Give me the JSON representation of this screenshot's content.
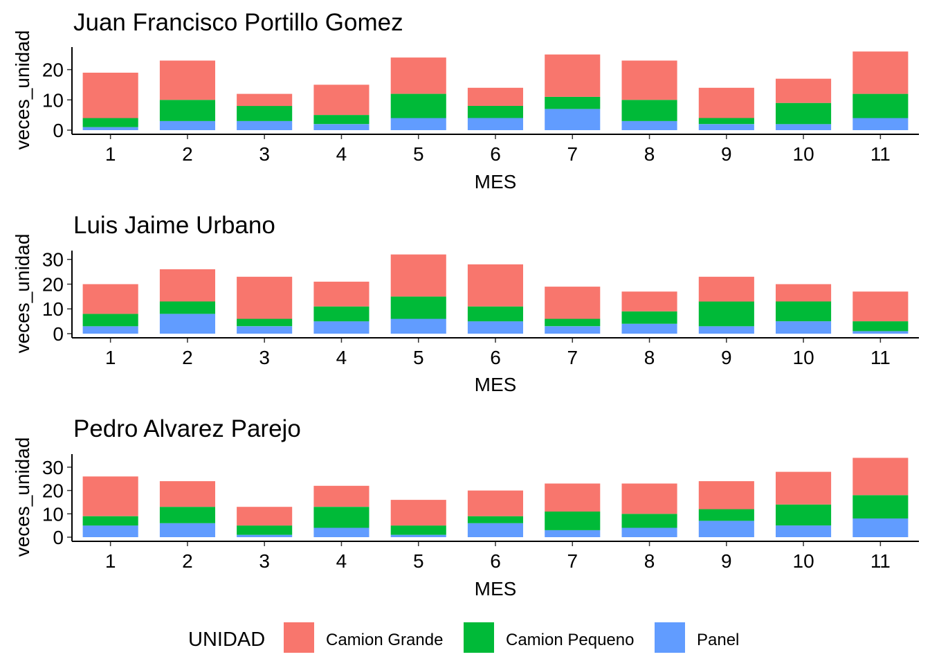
{
  "chart_data": [
    {
      "type": "bar",
      "stacked": true,
      "title": "Juan Francisco Portillo Gomez",
      "xlabel": "MES",
      "ylabel": "veces_unidad",
      "categories": [
        "1",
        "2",
        "3",
        "4",
        "5",
        "6",
        "7",
        "8",
        "9",
        "10",
        "11"
      ],
      "yticks": [
        0,
        10,
        20
      ],
      "ylim": [
        0,
        27
      ],
      "series": [
        {
          "name": "Panel",
          "values": [
            1,
            3,
            3,
            2,
            4,
            4,
            7,
            3,
            2,
            2,
            4
          ]
        },
        {
          "name": "Camion Pequeno",
          "values": [
            3,
            7,
            5,
            3,
            8,
            4,
            4,
            7,
            2,
            7,
            8
          ]
        },
        {
          "name": "Camion Grande",
          "values": [
            15,
            13,
            4,
            10,
            12,
            6,
            14,
            13,
            10,
            8,
            14
          ]
        }
      ]
    },
    {
      "type": "bar",
      "stacked": true,
      "title": "Luis Jaime Urbano",
      "xlabel": "MES",
      "ylabel": "veces_unidad",
      "categories": [
        "1",
        "2",
        "3",
        "4",
        "5",
        "6",
        "7",
        "8",
        "9",
        "10",
        "11"
      ],
      "yticks": [
        0,
        10,
        20,
        30
      ],
      "ylim": [
        0,
        33
      ],
      "series": [
        {
          "name": "Panel",
          "values": [
            3,
            8,
            3,
            5,
            6,
            5,
            3,
            4,
            3,
            5,
            1
          ]
        },
        {
          "name": "Camion Pequeno",
          "values": [
            5,
            5,
            3,
            6,
            9,
            6,
            3,
            5,
            10,
            8,
            4
          ]
        },
        {
          "name": "Camion Grande",
          "values": [
            12,
            13,
            17,
            10,
            17,
            17,
            13,
            8,
            10,
            7,
            12
          ]
        }
      ]
    },
    {
      "type": "bar",
      "stacked": true,
      "title": "Pedro Alvarez Parejo",
      "xlabel": "MES",
      "ylabel": "veces_unidad",
      "categories": [
        "1",
        "2",
        "3",
        "4",
        "5",
        "6",
        "7",
        "8",
        "9",
        "10",
        "11"
      ],
      "yticks": [
        0,
        10,
        20,
        30
      ],
      "ylim": [
        0,
        35
      ],
      "series": [
        {
          "name": "Panel",
          "values": [
            5,
            6,
            1,
            4,
            1,
            6,
            3,
            4,
            7,
            5,
            8
          ]
        },
        {
          "name": "Camion Pequeno",
          "values": [
            4,
            7,
            4,
            9,
            4,
            3,
            8,
            6,
            5,
            9,
            10
          ]
        },
        {
          "name": "Camion Grande",
          "values": [
            17,
            11,
            8,
            9,
            11,
            11,
            12,
            13,
            12,
            14,
            16
          ]
        }
      ]
    }
  ],
  "legend": {
    "title": "UNIDAD",
    "position": "bottom",
    "items": [
      {
        "label": "Camion Grande",
        "color": "#F8766D"
      },
      {
        "label": "Camion Pequeno",
        "color": "#00BA38"
      },
      {
        "label": "Panel",
        "color": "#619CFF"
      }
    ]
  },
  "colors": {
    "Camion Grande": "#F8766D",
    "Camion Pequeno": "#00BA38",
    "Panel": "#619CFF"
  }
}
